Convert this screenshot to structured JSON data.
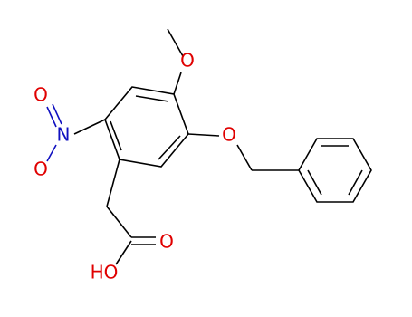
{
  "atoms": {
    "methoxy_o": "O",
    "benzyloxy_o": "O",
    "nitro_n": "N",
    "nitro_o_top": "O",
    "nitro_o_bottom": "O",
    "carbonyl_o": "O",
    "hydroxyl": "HO"
  }
}
